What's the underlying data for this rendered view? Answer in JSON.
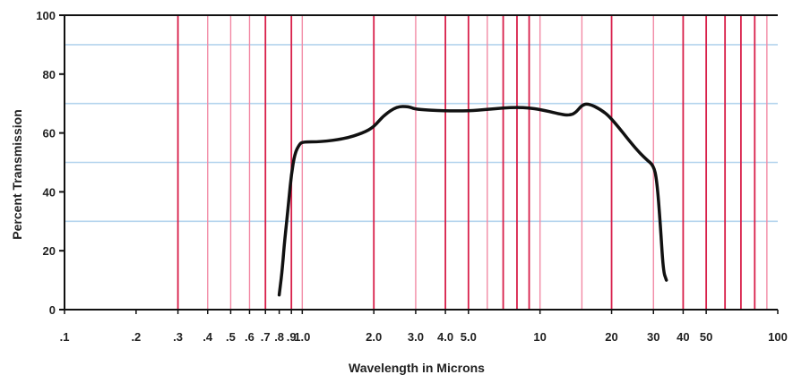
{
  "chart_data": {
    "type": "line",
    "xscale": "log",
    "xlabel": "Wavelength in Microns",
    "ylabel": "Percent Transmission",
    "xlim": [
      0.1,
      100
    ],
    "ylim": [
      0,
      100
    ],
    "yticks": [
      {
        "value": 0,
        "label": "0"
      },
      {
        "value": 20,
        "label": "20"
      },
      {
        "value": 40,
        "label": "40"
      },
      {
        "value": 60,
        "label": "60"
      },
      {
        "value": 80,
        "label": "80"
      },
      {
        "value": 100,
        "label": "100"
      }
    ],
    "xticks": [
      {
        "value": 0.1,
        "label": ".1"
      },
      {
        "value": 0.2,
        "label": ".2"
      },
      {
        "value": 0.3,
        "label": ".3"
      },
      {
        "value": 0.4,
        "label": ".4"
      },
      {
        "value": 0.5,
        "label": ".5"
      },
      {
        "value": 0.6,
        "label": ".6"
      },
      {
        "value": 0.7,
        "label": ".7"
      },
      {
        "value": 0.8,
        "label": ".8"
      },
      {
        "value": 0.9,
        "label": ".9"
      },
      {
        "value": 1.0,
        "label": "1.0"
      },
      {
        "value": 2.0,
        "label": "2.0"
      },
      {
        "value": 3.0,
        "label": "3.0"
      },
      {
        "value": 4.0,
        "label": "4.0"
      },
      {
        "value": 5.0,
        "label": "5.0"
      },
      {
        "value": 10,
        "label": "10"
      },
      {
        "value": 20,
        "label": "20"
      },
      {
        "value": 30,
        "label": "30"
      },
      {
        "value": 40,
        "label": "40"
      },
      {
        "value": 50,
        "label": "50"
      },
      {
        "value": 100,
        "label": "100"
      }
    ],
    "vgrid_red": [
      0.3,
      0.7,
      0.9,
      2.0,
      4.0,
      5.0,
      7.0,
      8.0,
      9.0,
      20,
      40,
      50,
      60,
      70,
      80
    ],
    "vgrid_pink": [
      0.4,
      0.5,
      0.6,
      1.0,
      3.0,
      6.0,
      10,
      15,
      30,
      90
    ],
    "hgrid_blue": [
      30,
      50,
      70,
      90
    ],
    "grid": true,
    "colors": {
      "curve": "#111111",
      "grid_red": "#d81f4a",
      "grid_pink": "#f28aa5",
      "grid_blue": "#b4d4ee",
      "axis": "#111111"
    },
    "series": [
      {
        "x": [
          0.8,
          0.82,
          0.84,
          0.86,
          0.88,
          0.9,
          0.93,
          0.97,
          1.0,
          1.2,
          1.5,
          1.8,
          2.0,
          2.2,
          2.5,
          2.8,
          3.0,
          4.0,
          5.0,
          6.0,
          7.0,
          8.0,
          9.0,
          10,
          12,
          13,
          14,
          15,
          16,
          18,
          20,
          25,
          28,
          30,
          31,
          32,
          33,
          34
        ],
        "y": [
          5,
          12,
          22,
          30,
          38,
          46,
          53,
          56,
          57,
          57,
          58,
          60,
          62,
          66,
          69,
          69,
          68,
          67.5,
          67.5,
          68,
          68.5,
          68.7,
          68.5,
          68,
          66.5,
          66,
          66.5,
          69.5,
          70,
          68,
          65,
          55,
          51,
          49,
          44,
          30,
          13,
          10
        ]
      }
    ]
  }
}
